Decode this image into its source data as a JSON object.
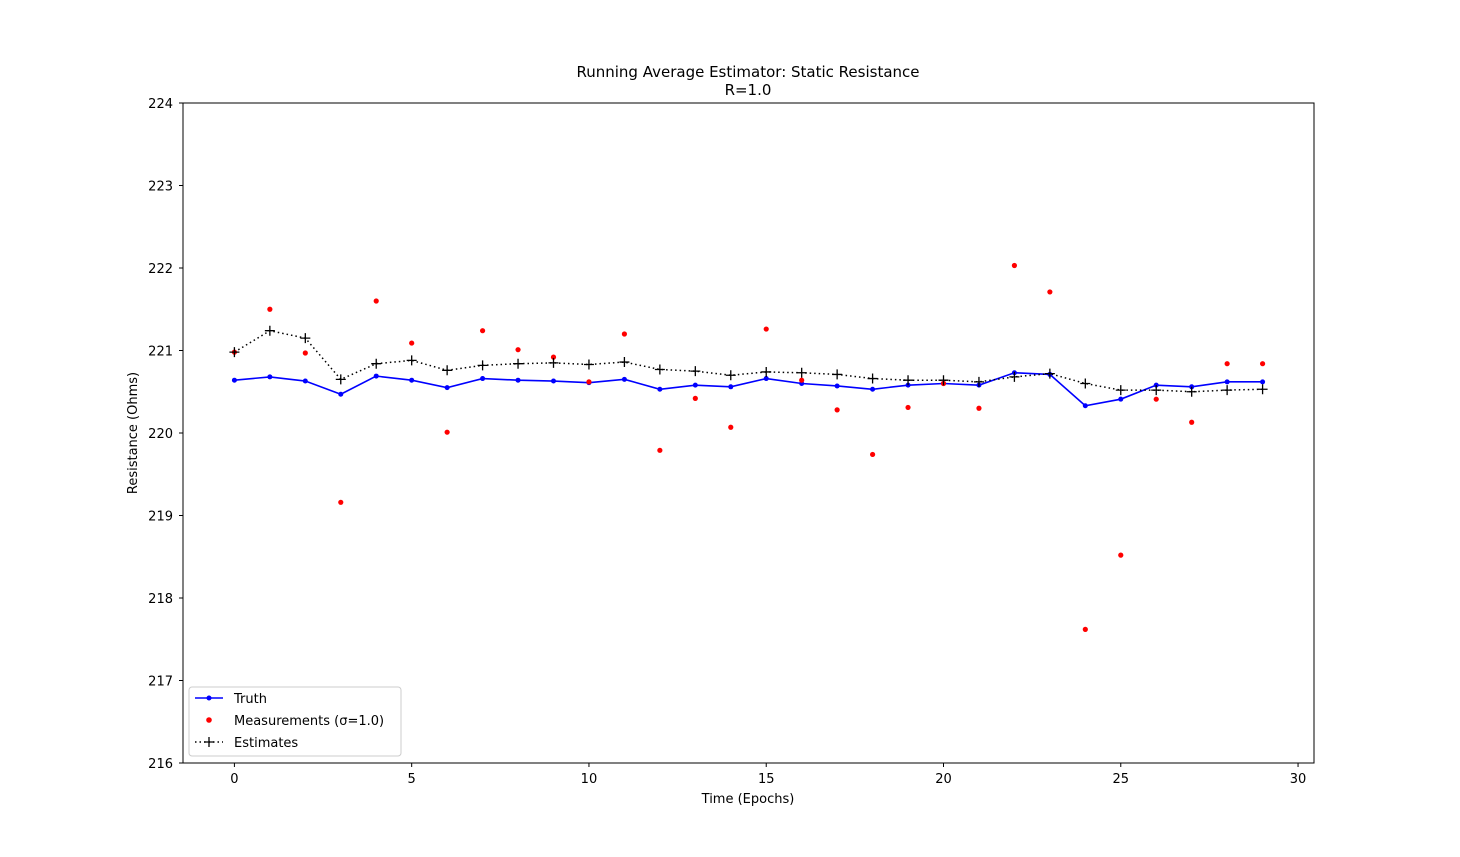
{
  "chart_data": {
    "type": "line",
    "title": "Running Average Estimator: Static Resistance",
    "subtitle": "R=1.0",
    "xlabel": "Time (Epochs)",
    "ylabel": "Resistance (Ohms)",
    "xlim": [
      -1.45,
      30.45
    ],
    "ylim": [
      216,
      224
    ],
    "xticks": [
      0,
      5,
      10,
      15,
      20,
      25,
      30
    ],
    "yticks": [
      216,
      217,
      218,
      219,
      220,
      221,
      222,
      223,
      224
    ],
    "grid": false,
    "legend_location": "lower left",
    "x": [
      0,
      1,
      2,
      3,
      4,
      5,
      6,
      7,
      8,
      9,
      10,
      11,
      12,
      13,
      14,
      15,
      16,
      17,
      18,
      19,
      20,
      21,
      22,
      23,
      24,
      25,
      26,
      27,
      28,
      29
    ],
    "series": [
      {
        "name": "Truth",
        "style": "solid line with dot markers",
        "color": "#0000ff",
        "values": [
          220.64,
          220.68,
          220.63,
          220.47,
          220.69,
          220.64,
          220.55,
          220.66,
          220.64,
          220.63,
          220.61,
          220.65,
          220.53,
          220.58,
          220.56,
          220.66,
          220.6,
          220.57,
          220.53,
          220.58,
          220.6,
          220.58,
          220.73,
          220.71,
          220.33,
          220.41,
          220.58,
          220.56,
          220.62,
          220.62
        ]
      },
      {
        "name": "Measurements (σ=1.0)",
        "style": "dots only",
        "color": "#ff0000",
        "values": [
          220.98,
          221.5,
          220.97,
          219.16,
          221.6,
          221.09,
          220.01,
          221.24,
          221.01,
          220.92,
          220.62,
          221.2,
          219.79,
          220.42,
          220.07,
          221.26,
          220.64,
          220.28,
          219.74,
          220.31,
          220.6,
          220.3,
          222.03,
          221.71,
          217.62,
          218.52,
          220.41,
          220.13,
          220.84,
          220.84
        ]
      },
      {
        "name": "Estimates",
        "style": "dotted line with plus markers",
        "color": "#000000",
        "values": [
          220.98,
          221.24,
          221.15,
          220.65,
          220.84,
          220.88,
          220.76,
          220.82,
          220.84,
          220.85,
          220.83,
          220.86,
          220.77,
          220.75,
          220.7,
          220.74,
          220.73,
          220.71,
          220.66,
          220.64,
          220.64,
          220.62,
          220.68,
          220.72,
          220.6,
          220.52,
          220.52,
          220.5,
          220.52,
          220.53
        ]
      }
    ]
  }
}
